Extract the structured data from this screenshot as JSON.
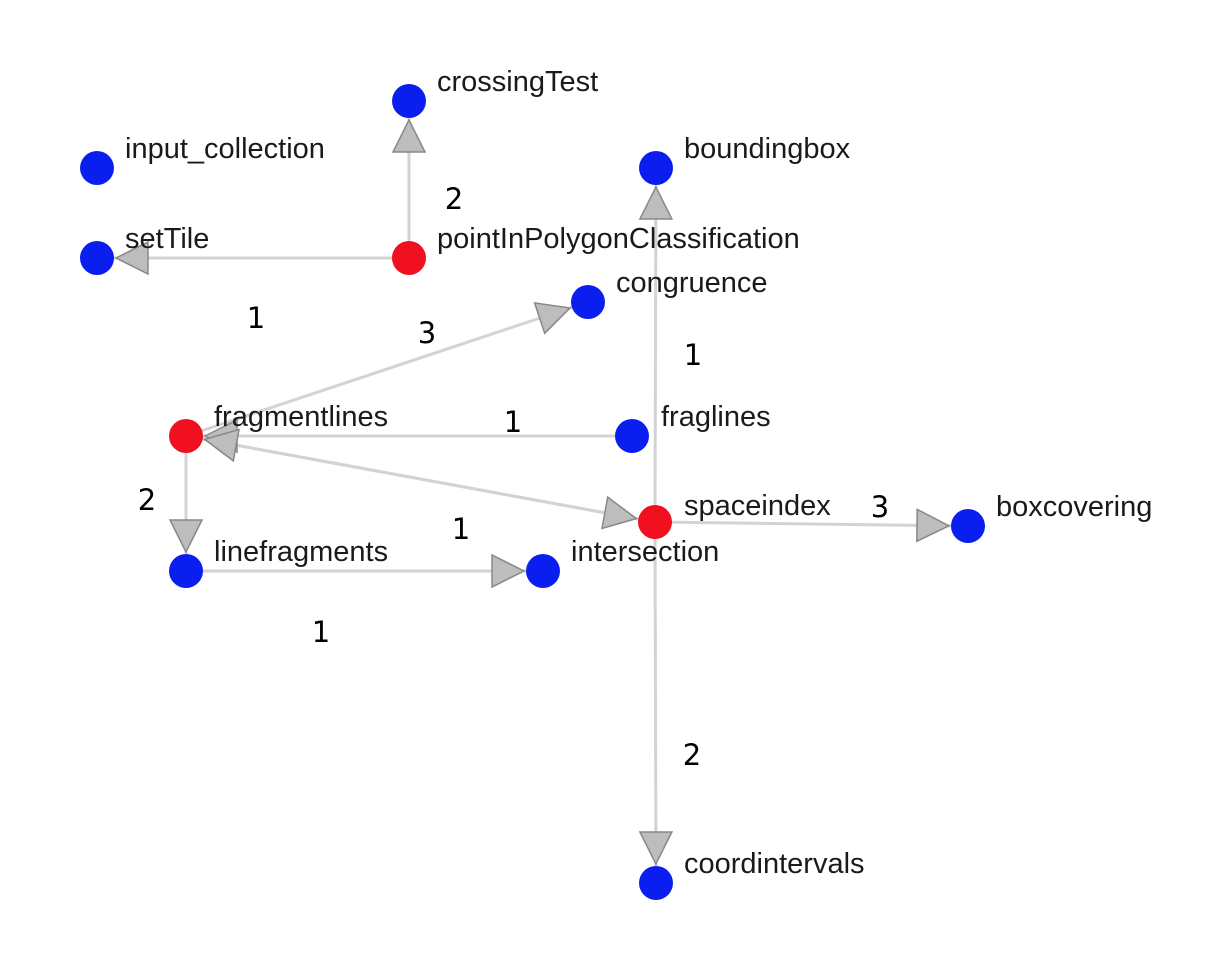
{
  "nodes": [
    {
      "id": "crossingTest",
      "label": "crossingTest",
      "color": "#0a1ef0"
    },
    {
      "id": "input_collection",
      "label": "input_collection",
      "color": "#0a1ef0"
    },
    {
      "id": "boundingbox",
      "label": "boundingbox",
      "color": "#0a1ef0"
    },
    {
      "id": "setTile",
      "label": "setTile",
      "color": "#0a1ef0"
    },
    {
      "id": "pointInPolygonClassification",
      "label": "pointInPolygonClassification",
      "color": "#f01020"
    },
    {
      "id": "congruence",
      "label": "congruence",
      "color": "#0a1ef0"
    },
    {
      "id": "fragmentlines",
      "label": "fragmentlines",
      "color": "#f01020"
    },
    {
      "id": "fraglines",
      "label": "fraglines",
      "color": "#0a1ef0"
    },
    {
      "id": "spaceindex",
      "label": "spaceindex",
      "color": "#f01020"
    },
    {
      "id": "boxcovering",
      "label": "boxcovering",
      "color": "#0a1ef0"
    },
    {
      "id": "linefragments",
      "label": "linefragments",
      "color": "#0a1ef0"
    },
    {
      "id": "intersection",
      "label": "intersection",
      "color": "#0a1ef0"
    },
    {
      "id": "coordintervals",
      "label": "coordintervals",
      "color": "#0a1ef0"
    }
  ],
  "edges": [
    {
      "from": "pointInPolygonClassification",
      "to": "crossingTest",
      "weight": "2"
    },
    {
      "from": "pointInPolygonClassification",
      "to": "setTile",
      "weight": "1"
    },
    {
      "from": "spaceindex",
      "to": "boundingbox",
      "weight": "1"
    },
    {
      "from": "fragmentlines",
      "to": "congruence",
      "weight": "3"
    },
    {
      "from": "fraglines",
      "to": "fragmentlines",
      "weight": "1"
    },
    {
      "from": "spaceindex",
      "to": "fragmentlines",
      "weight": "1"
    },
    {
      "from": "fragmentlines",
      "to": "spaceindex",
      "weight": ""
    },
    {
      "from": "fragmentlines",
      "to": "linefragments",
      "weight": "2"
    },
    {
      "from": "linefragments",
      "to": "intersection",
      "weight": "1"
    },
    {
      "from": "spaceindex",
      "to": "boxcovering",
      "weight": "3"
    },
    {
      "from": "spaceindex",
      "to": "coordintervals",
      "weight": "2"
    }
  ]
}
